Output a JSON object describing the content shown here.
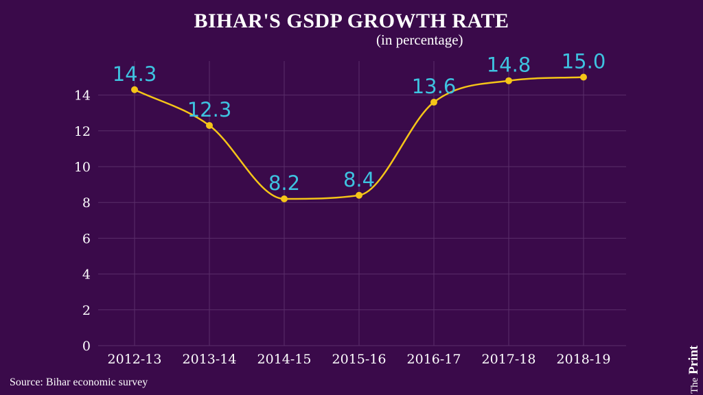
{
  "chart_data": {
    "type": "line",
    "title": "BIHAR'S GSDP GROWTH RATE",
    "subtitle": "(in percentage)",
    "categories": [
      "2012-13",
      "2013-14",
      "2014-15",
      "2015-16",
      "2016-17",
      "2017-18",
      "2018-19"
    ],
    "values": [
      14.3,
      12.3,
      8.2,
      8.4,
      13.6,
      14.8,
      15.0
    ],
    "data_labels": [
      "14.3",
      "12.3",
      "8.2",
      "8.4",
      "13.6",
      "14.8",
      "15.0"
    ],
    "yticks": [
      "0",
      "2",
      "4",
      "6",
      "8",
      "10",
      "12",
      "14"
    ],
    "ylim": [
      0,
      15
    ],
    "grid": true,
    "colors": {
      "line": "#f5c518",
      "marker": "#f5c518",
      "data_label": "#3ec3e0",
      "grid": "#5a2e6a",
      "axis_text": "#ffffff",
      "background": "#3a0a4a"
    }
  },
  "source": "Source: Bihar economic survey",
  "brand": {
    "the": "The",
    "print": "Print"
  }
}
